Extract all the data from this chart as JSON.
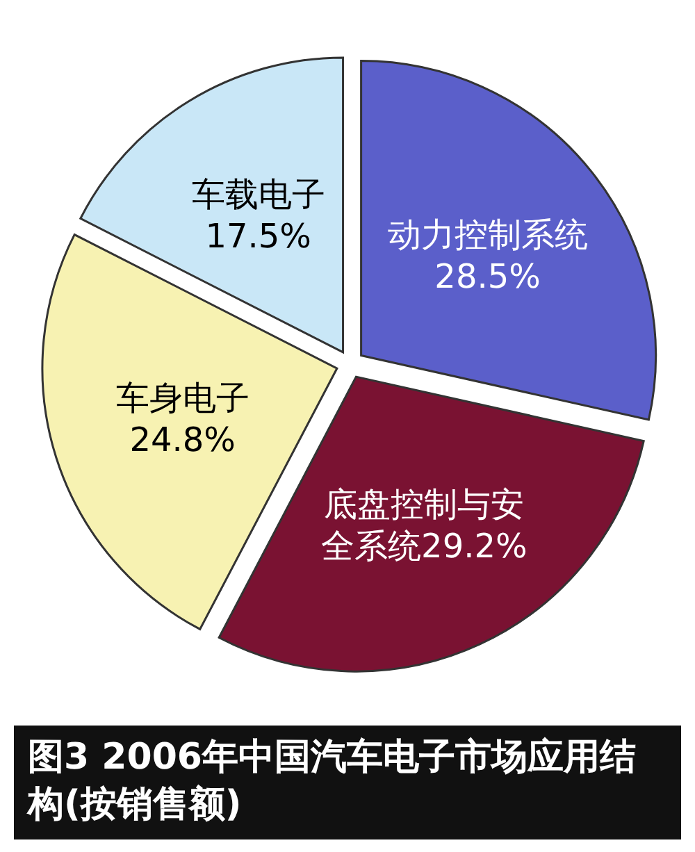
{
  "chart_data": {
    "type": "pie",
    "title": "图3 2006年中国汽车电子市场应用结构(按销售额)",
    "categories": [
      "动力控制系统",
      "底盘控制与安全系统",
      "车身电子",
      "车载电子"
    ],
    "values": [
      28.5,
      29.2,
      24.8,
      17.5
    ],
    "colors": [
      "#5b5fca",
      "#7a1232",
      "#f7f2b2",
      "#c9e7f7"
    ],
    "value_labels": [
      "28.5%",
      "29.2%",
      "24.8%",
      "17.5%"
    ]
  }
}
